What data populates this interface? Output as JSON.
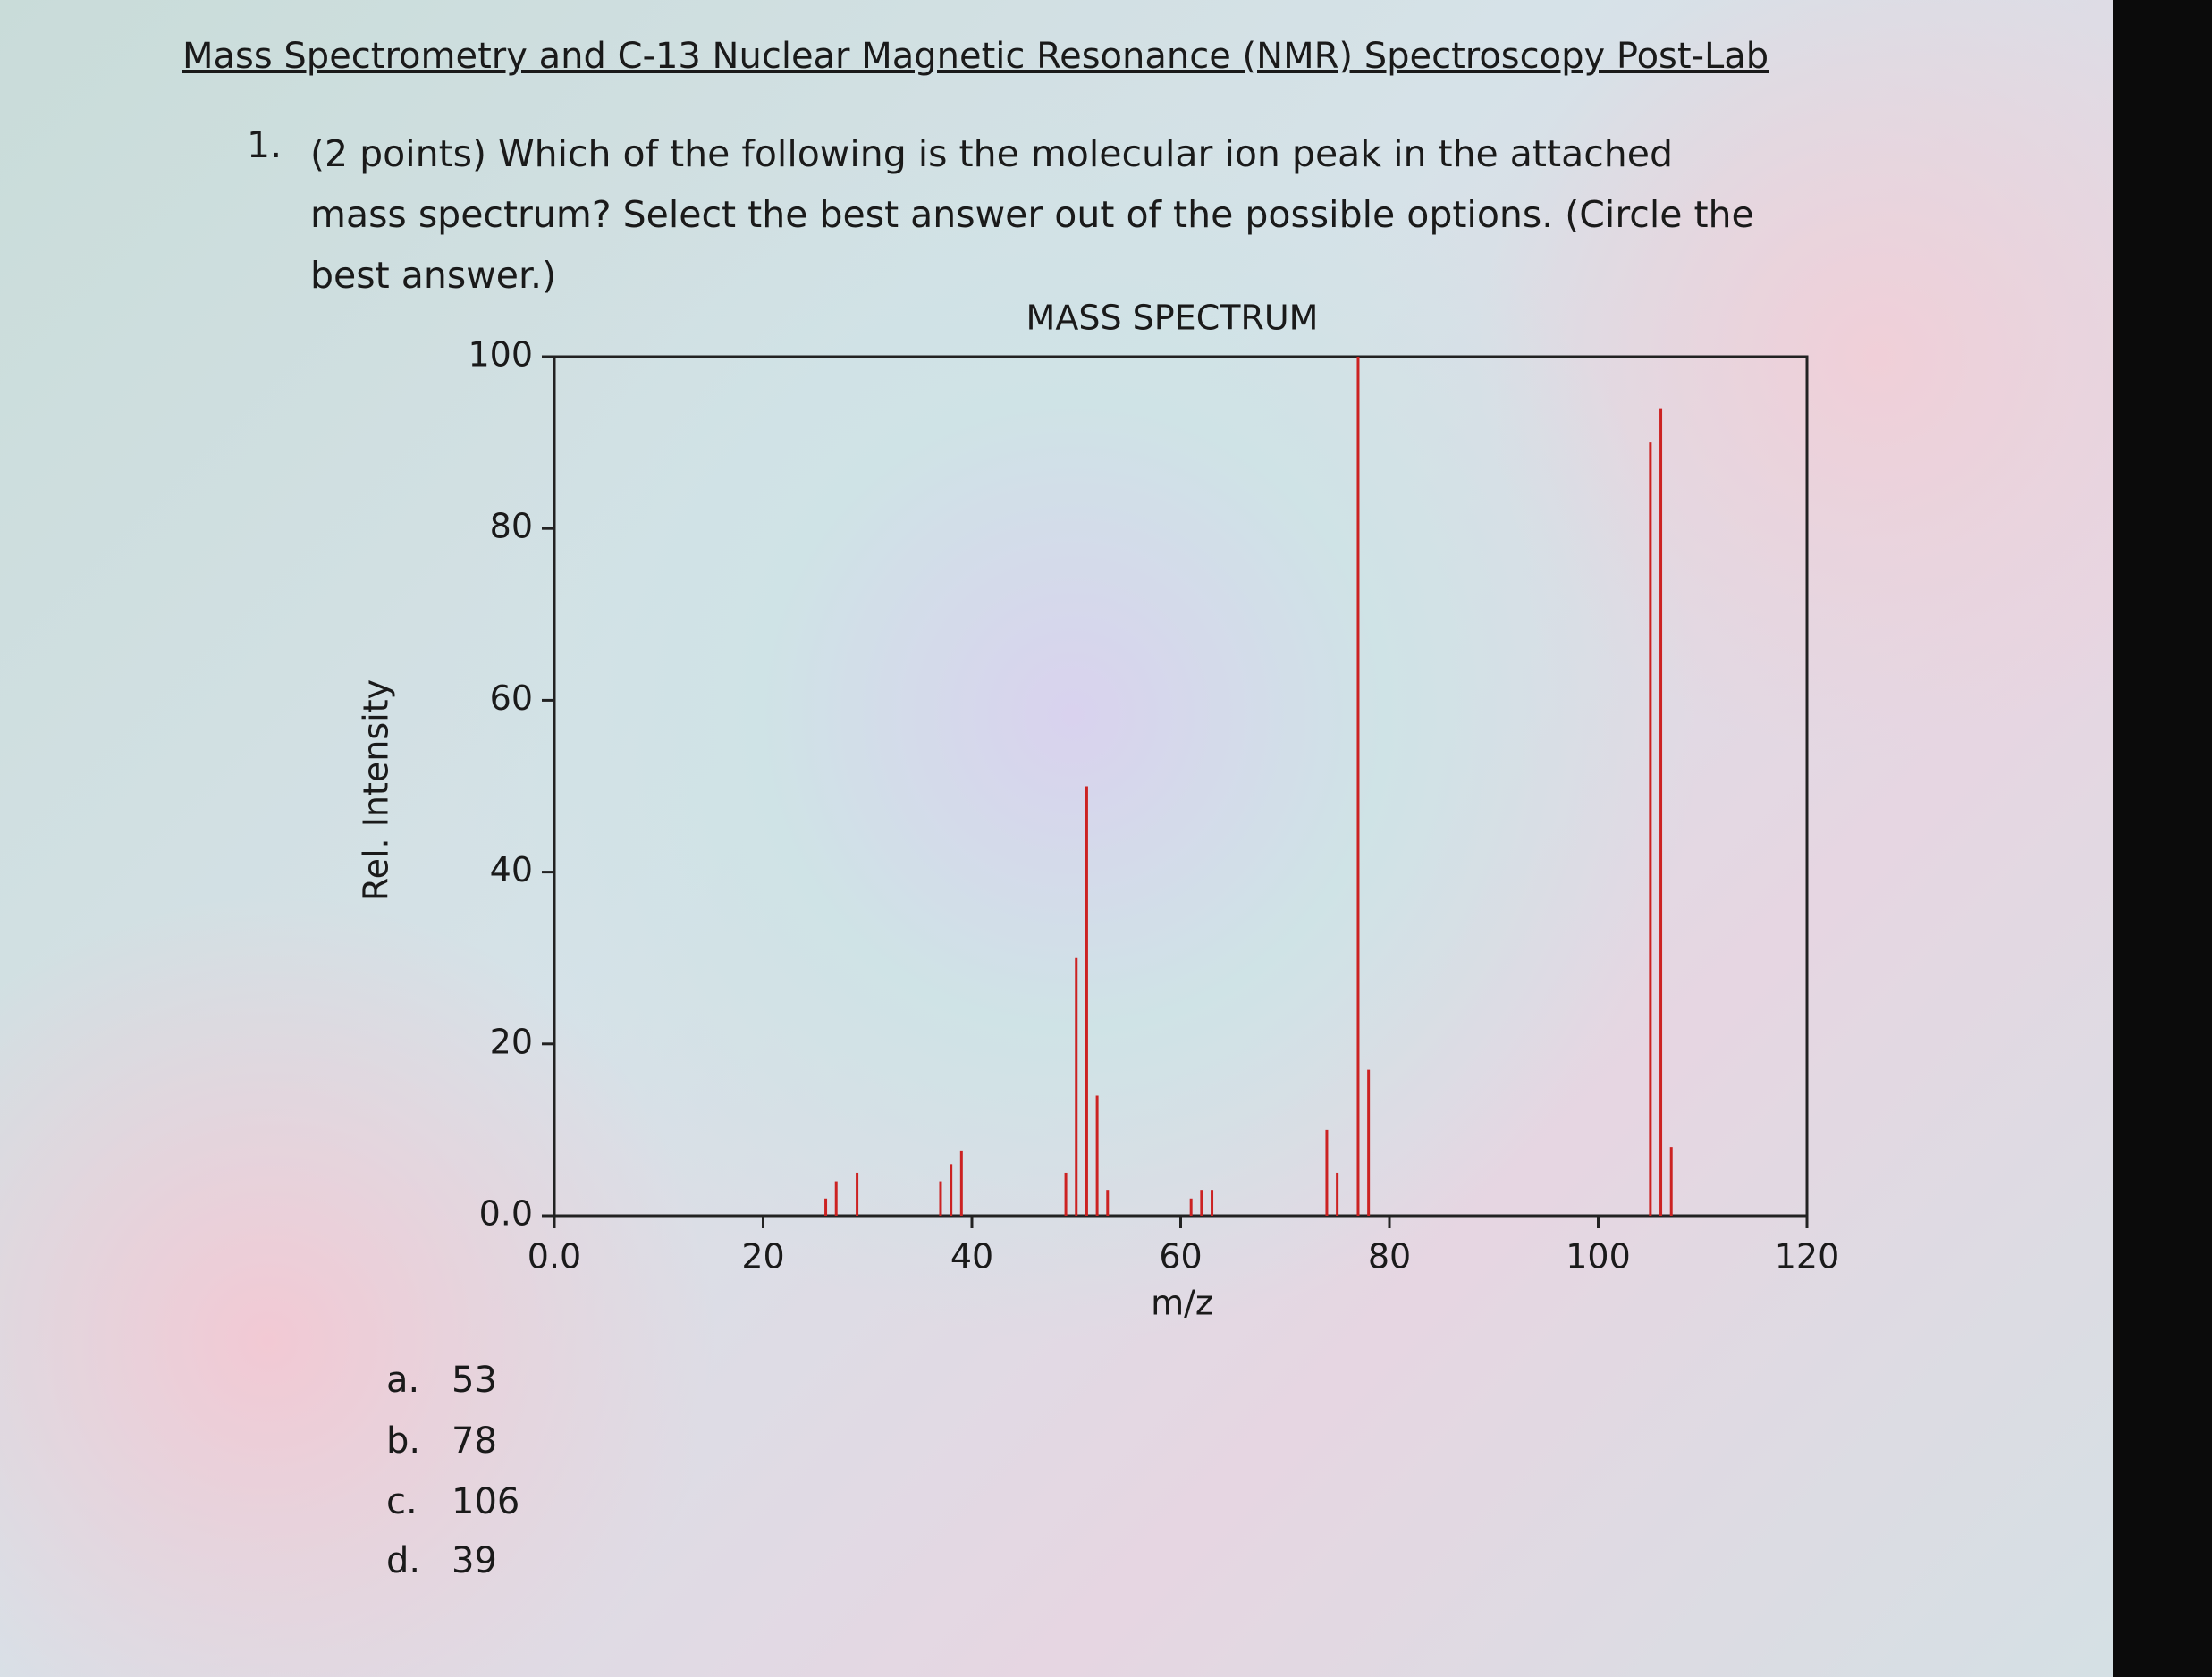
{
  "header": {
    "title": "Mass Spectrometry and C-13 Nuclear Magnetic Resonance (NMR) Spectroscopy Post-Lab"
  },
  "question": {
    "number": "1.",
    "text": "(2 points) Which of the following is the molecular ion peak in the attached mass spectrum? Select the best answer out of the possible options. (Circle the best answer.)"
  },
  "chart_data": {
    "type": "bar",
    "title": "MASS SPECTRUM",
    "x_label": "m/z",
    "y_label": "Rel. Intensity",
    "x": [
      26,
      27,
      29,
      37,
      38,
      39,
      49,
      50,
      51,
      52,
      53,
      61,
      62,
      63,
      74,
      75,
      77,
      78,
      105,
      106,
      107
    ],
    "series": [
      {
        "name": "Rel. Intensity",
        "color": "#cc2222",
        "values": [
          2,
          4,
          5,
          4,
          6,
          7.5,
          5,
          30,
          50,
          14,
          3,
          2,
          3,
          3,
          10,
          5,
          100,
          17,
          90,
          94,
          8
        ]
      }
    ],
    "xlim": [
      0,
      120
    ],
    "ylim": [
      0,
      100
    ],
    "xticks": [
      {
        "value": 0,
        "label": "0.0"
      },
      20,
      40,
      60,
      80,
      100,
      120
    ],
    "yticks": [
      {
        "value": 0,
        "label": "0.0"
      },
      20,
      40,
      60,
      80,
      100
    ],
    "grid": false
  },
  "options": [
    {
      "letter": "a.",
      "text": "53"
    },
    {
      "letter": "b.",
      "text": "78"
    },
    {
      "letter": "c.",
      "text": "106"
    },
    {
      "letter": "d.",
      "text": "39"
    }
  ]
}
